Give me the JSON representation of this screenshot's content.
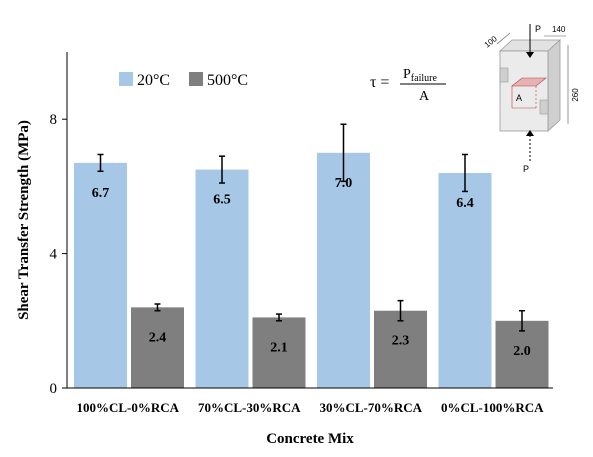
{
  "chart_data": {
    "type": "bar",
    "xlabel": "Concrete Mix",
    "ylabel": "Shear Transfer Strength (MPa)",
    "categories": [
      "100%CL-0%RCA",
      "70%CL-30%RCA",
      "30%CL-70%RCA",
      "0%CL-100%RCA"
    ],
    "ylim": [
      0,
      10
    ],
    "yticks": [
      0,
      4,
      8
    ],
    "grid": false,
    "legend_position": "top-left",
    "series": [
      {
        "name": "20°C",
        "color": "#a6c8e6",
        "values": [
          6.7,
          6.5,
          7.0,
          6.4
        ],
        "labels": [
          "6.7",
          "6.5",
          "7.0",
          "6.4"
        ],
        "error": [
          0.25,
          0.4,
          0.85,
          0.55
        ]
      },
      {
        "name": "500°C",
        "color": "#7f7f7f",
        "values": [
          2.4,
          2.1,
          2.3,
          2.0
        ],
        "labels": [
          "2.4",
          "2.1",
          "2.3",
          "2.0"
        ],
        "error": [
          0.1,
          0.1,
          0.3,
          0.3
        ]
      }
    ],
    "annotations": {
      "formula": {
        "lhs": "τ =",
        "numerator_main": "P",
        "numerator_sub": "failure",
        "denominator": "A"
      },
      "specimen": {
        "load_top": "P",
        "load_bottom": "P",
        "dim_depth": "100",
        "dim_width": "140",
        "dim_height": "260",
        "area_label": "A"
      }
    }
  }
}
